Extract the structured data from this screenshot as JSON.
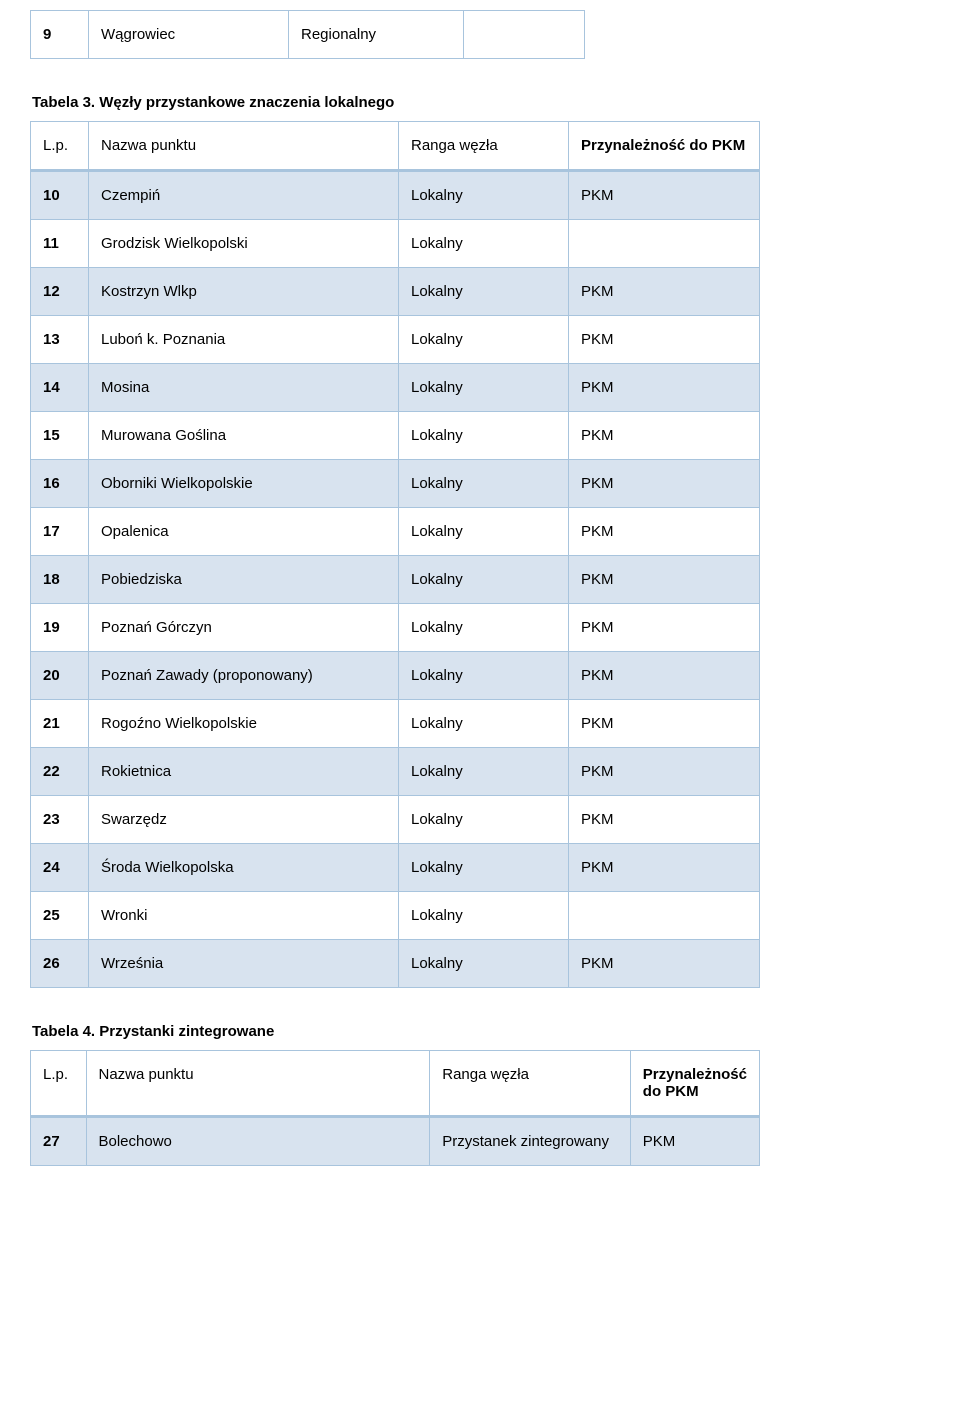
{
  "colors": {
    "border": "#a8c4dd",
    "shaded_row": "#d8e3ef",
    "background": "#ffffff",
    "text": "#000000"
  },
  "top_table": {
    "rows": [
      {
        "lp": "9",
        "name": "Wągrowiec",
        "rank": "Regionalny",
        "pkm": ""
      }
    ]
  },
  "table3": {
    "caption": "Tabela 3. Węzły przystankowe znaczenia lokalnego",
    "columns": {
      "lp": "L.p.",
      "name": "Nazwa punktu",
      "rank": "Ranga węzła",
      "pkm": "Przynależność do PKM"
    },
    "rows": [
      {
        "lp": "10",
        "name": "Czempiń",
        "rank": "Lokalny",
        "pkm": "PKM",
        "shaded": true
      },
      {
        "lp": "11",
        "name": "Grodzisk Wielkopolski",
        "rank": "Lokalny",
        "pkm": "",
        "shaded": false
      },
      {
        "lp": "12",
        "name": "Kostrzyn Wlkp",
        "rank": "Lokalny",
        "pkm": "PKM",
        "shaded": true
      },
      {
        "lp": "13",
        "name": "Luboń k. Poznania",
        "rank": "Lokalny",
        "pkm": "PKM",
        "shaded": false
      },
      {
        "lp": "14",
        "name": "Mosina",
        "rank": "Lokalny",
        "pkm": "PKM",
        "shaded": true
      },
      {
        "lp": "15",
        "name": "Murowana Goślina",
        "rank": "Lokalny",
        "pkm": "PKM",
        "shaded": false
      },
      {
        "lp": "16",
        "name": "Oborniki Wielkopolskie",
        "rank": "Lokalny",
        "pkm": "PKM",
        "shaded": true
      },
      {
        "lp": "17",
        "name": "Opalenica",
        "rank": "Lokalny",
        "pkm": "PKM",
        "shaded": false
      },
      {
        "lp": "18",
        "name": "Pobiedziska",
        "rank": "Lokalny",
        "pkm": "PKM",
        "shaded": true
      },
      {
        "lp": "19",
        "name": "Poznań Górczyn",
        "rank": "Lokalny",
        "pkm": "PKM",
        "shaded": false
      },
      {
        "lp": "20",
        "name": "Poznań Zawady (proponowany)",
        "rank": "Lokalny",
        "pkm": "PKM",
        "shaded": true
      },
      {
        "lp": "21",
        "name": "Rogoźno Wielkopolskie",
        "rank": "Lokalny",
        "pkm": "PKM",
        "shaded": false
      },
      {
        "lp": "22",
        "name": "Rokietnica",
        "rank": "Lokalny",
        "pkm": "PKM",
        "shaded": true
      },
      {
        "lp": "23",
        "name": "Swarzędz",
        "rank": "Lokalny",
        "pkm": "PKM",
        "shaded": false
      },
      {
        "lp": "24",
        "name": "Środa Wielkopolska",
        "rank": "Lokalny",
        "pkm": "PKM",
        "shaded": true
      },
      {
        "lp": "25",
        "name": "Wronki",
        "rank": "Lokalny",
        "pkm": "",
        "shaded": false
      },
      {
        "lp": "26",
        "name": "Września",
        "rank": "Lokalny",
        "pkm": "PKM",
        "shaded": true
      }
    ]
  },
  "table4": {
    "caption": "Tabela 4. Przystanki zintegrowane",
    "columns": {
      "lp": "L.p.",
      "name": "Nazwa punktu",
      "rank": "Ranga węzła",
      "pkm": "Przynależność do PKM"
    },
    "rows": [
      {
        "lp": "27",
        "name": "Bolechowo",
        "rank": "Przystanek zintegrowany",
        "pkm": "PKM",
        "shaded": true
      }
    ]
  }
}
